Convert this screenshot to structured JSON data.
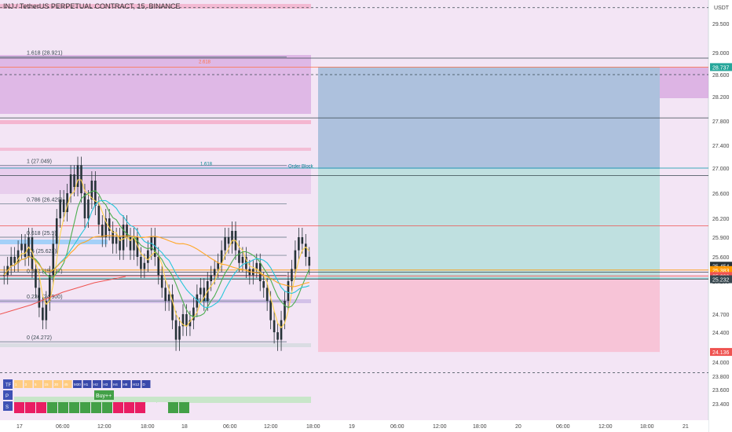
{
  "header": {
    "symbol_line": "INJ / TetherUS PERPETUAL CONTRACT, 15, BINANCE",
    "currency": "USDT"
  },
  "colors": {
    "bull_candle": "#26a69a",
    "bear_candle": "#ef5350",
    "zone_pink": "#e1bee7",
    "long_tp": "#b2dfdb",
    "long_sl": "#f8bbd0",
    "projection_grey": "#9fa8da",
    "ema_fast": "#ffd54f",
    "ema_mid": "#4caf50",
    "ema_slow": "#26c6da",
    "ema_orange": "#ffa726",
    "ema_red": "#ef5350"
  },
  "chart_data": {
    "type": "candlestick",
    "ylim": [
      23.1,
      29.9
    ],
    "y_ticks": [
      "29.500",
      "29.000",
      "28.600",
      "28.200",
      "27.800",
      "27.400",
      "27.000",
      "26.600",
      "26.200",
      "25.900",
      "25.600",
      "25.200",
      "24.700",
      "24.400",
      "24.000",
      "23.800",
      "23.600",
      "23.400"
    ],
    "x_ticks": [
      "17",
      "06:00",
      "12:00",
      "18:00",
      "18",
      "06:00",
      "12:00",
      "18:00",
      "19",
      "06:00",
      "12:00",
      "18:00",
      "20",
      "06:00",
      "12:00",
      "18:00",
      "21"
    ],
    "price_labels": [
      {
        "text": "28.737",
        "price": 28.737,
        "color": "#26a69a"
      },
      {
        "text": "25.454",
        "price": 25.454,
        "color": "#263238"
      },
      {
        "text": "12:05",
        "price": 25.34,
        "color": "#263238"
      },
      {
        "text": "25.383",
        "price": 25.383,
        "color": "#ff9800"
      },
      {
        "text": "25.286",
        "price": 25.286,
        "color": "#ef5350"
      },
      {
        "text": "25.232",
        "price": 25.232,
        "color": "#37474f"
      },
      {
        "text": "24.136",
        "price": 24.136,
        "color": "#ef5350"
      }
    ],
    "fib_levels": [
      {
        "label": "1.618 (28.921)",
        "price": 28.921
      },
      {
        "label": "1 (27.049)",
        "price": 27.049
      },
      {
        "label": "0.786 (26.429)",
        "price": 26.429
      },
      {
        "label": "0.618 (25.9)",
        "price": 25.9
      },
      {
        "label": "0.5 (25.623)",
        "price": 25.623
      },
      {
        "label": "0.382 (25.297)",
        "price": 25.297
      },
      {
        "label": "0.236 (24.900)",
        "price": 24.9
      },
      {
        "label": "0 (24.272)",
        "price": 24.272
      }
    ],
    "annotations": [
      {
        "text": "2.618",
        "price": 28.78
      },
      {
        "text": "1.618",
        "price": 27.02
      },
      {
        "text": "Order Block",
        "price": 26.98
      },
      {
        "text": "0.382",
        "price": 24.86
      }
    ],
    "position": {
      "entry": 25.232,
      "target": 28.737,
      "stop": 24.136
    },
    "candles_close": [
      25.3,
      25.45,
      25.6,
      25.5,
      25.7,
      25.8,
      25.6,
      25.9,
      25.4,
      25.1,
      24.8,
      24.6,
      24.9,
      25.3,
      25.8,
      26.2,
      26.5,
      26.3,
      26.6,
      26.9,
      26.7,
      27.05,
      26.6,
      26.2,
      26.5,
      26.8,
      26.4,
      26.1,
      25.9,
      26.2,
      26.0,
      25.8,
      25.9,
      25.7,
      26.1,
      25.9,
      25.7,
      25.9,
      25.6,
      25.4,
      25.5,
      25.7,
      25.9,
      25.6,
      25.3,
      25.1,
      24.9,
      25.0,
      24.6,
      24.3,
      24.5,
      24.7,
      24.5,
      24.6,
      24.8,
      25.0,
      25.1,
      24.9,
      25.2,
      25.3,
      25.4,
      25.5,
      25.7,
      25.9,
      25.8,
      26.0,
      25.7,
      25.5,
      25.6,
      25.4,
      25.3,
      25.4,
      25.5,
      25.2,
      25.1,
      24.9,
      24.6,
      24.4,
      24.3,
      24.6,
      24.9,
      25.2,
      25.4,
      25.7,
      25.9,
      25.8,
      25.6,
      25.454
    ],
    "ribbon": {
      "labels": [
        "TF",
        "P",
        "S"
      ],
      "tf_cells": [
        "1",
        "3",
        "5",
        "15",
        "30",
        "45",
        "M30",
        "H1",
        "H2",
        "H3",
        "H4",
        "H8",
        "H12",
        "D"
      ],
      "signal_label": "Buy++"
    }
  }
}
